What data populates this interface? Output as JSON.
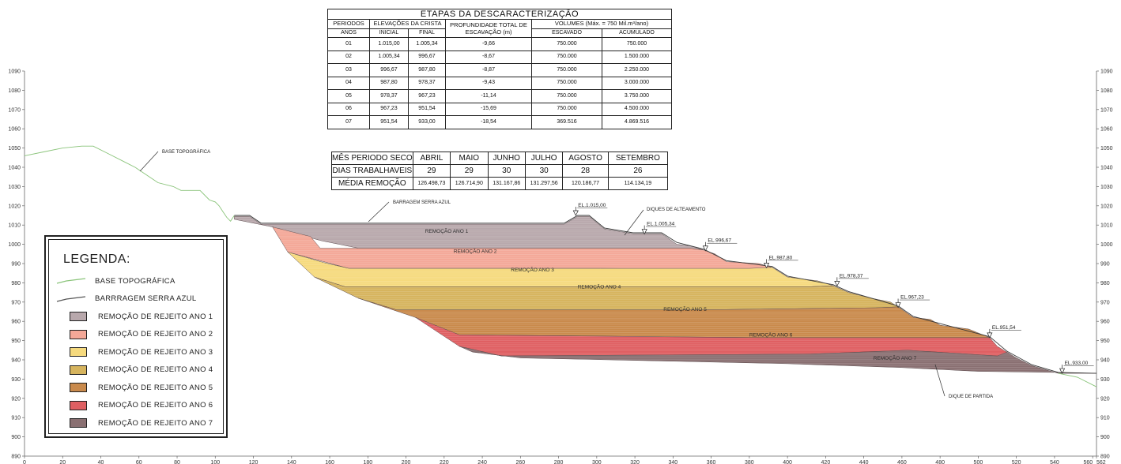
{
  "etapas_table": {
    "title": "ETAPAS DA DESCARACTERIZAÇÃO",
    "hdr_periodos": "PERIODOS",
    "hdr_elevacoes": "ELEVAÇÕES DA CRISTA",
    "hdr_profundidade": "PROFUNDIDADE TOTAL DE ESCAVAÇÃO (m)",
    "hdr_volumes": "VOLUMES (Máx. = 750 Mil.m³/ano)",
    "hdr_anos": "ANOS",
    "hdr_inicial": "INICIAL",
    "hdr_final": "FINAL",
    "hdr_escavado": "ESCAVADO",
    "hdr_acumulado": "ACUMULADO",
    "rows": [
      {
        "ano": "01",
        "inicial": "1.015,00",
        "final": "1.005,34",
        "prof": "-9,66",
        "escavado": "750.000",
        "acumulado": "750.000"
      },
      {
        "ano": "02",
        "inicial": "1.005,34",
        "final": "996,67",
        "prof": "-8,67",
        "escavado": "750.000",
        "acumulado": "1.500.000"
      },
      {
        "ano": "03",
        "inicial": "996,67",
        "final": "987,80",
        "prof": "-8,87",
        "escavado": "750.000",
        "acumulado": "2.250.000"
      },
      {
        "ano": "04",
        "inicial": "987,80",
        "final": "978,37",
        "prof": "-9,43",
        "escavado": "750.000",
        "acumulado": "3.000.000"
      },
      {
        "ano": "05",
        "inicial": "978,37",
        "final": "967,23",
        "prof": "-11,14",
        "escavado": "750.000",
        "acumulado": "3.750.000"
      },
      {
        "ano": "06",
        "inicial": "967,23",
        "final": "951,54",
        "prof": "-15,69",
        "escavado": "750.000",
        "acumulado": "4.500.000"
      },
      {
        "ano": "07",
        "inicial": "951,54",
        "final": "933,00",
        "prof": "-18,54",
        "escavado": "369.516",
        "acumulado": "4.869.516"
      }
    ]
  },
  "meses_table": {
    "label_mes": "MÊS PERIODO SECO",
    "label_dias": "DIAS TRABALHAVEIS",
    "label_media": "MÉDIA REMOÇÃO",
    "meses": [
      "ABRIL",
      "MAIO",
      "JUNHO",
      "JULHO",
      "AGOSTO",
      "SETEMBRO"
    ],
    "dias": [
      "29",
      "29",
      "30",
      "30",
      "28",
      "26"
    ],
    "media": [
      "126.498,73",
      "126.714,90",
      "131.167,86",
      "131.297,56",
      "120.186,77",
      "114.134,19"
    ]
  },
  "legend": {
    "title": "LEGENDA:",
    "items": [
      {
        "label": "BASE TOPOGRÁFICA",
        "kind": "line",
        "color": "#8ac47a"
      },
      {
        "label": "BARRRAGEM SERRA AZUL",
        "kind": "line",
        "color": "#555555"
      },
      {
        "label": "REMOÇÃO DE REJEITO ANO 1",
        "kind": "swatch",
        "color": "#b8a8ac"
      },
      {
        "label": "REMOÇÃO DE REJEITO ANO 2",
        "kind": "swatch",
        "color": "#f4a898"
      },
      {
        "label": "REMOÇÃO DE REJEITO ANO 3",
        "kind": "swatch",
        "color": "#f6da7e"
      },
      {
        "label": "REMOÇÃO DE REJEITO ANO 4",
        "kind": "swatch",
        "color": "#d6b45e"
      },
      {
        "label": "REMOÇÃO DE REJEITO ANO 5",
        "kind": "swatch",
        "color": "#c98a4c"
      },
      {
        "label": "REMOÇÃO DE REJEITO ANO 6",
        "kind": "swatch",
        "color": "#df5f62"
      },
      {
        "label": "REMOÇÃO DE REJEITO ANO 7",
        "kind": "swatch",
        "color": "#8a7072"
      }
    ]
  },
  "section": {
    "x_axis": {
      "min": 0,
      "max": 562,
      "ticks": [
        "0",
        "20",
        "40",
        "60",
        "80",
        "100",
        "120",
        "140",
        "160",
        "180",
        "200",
        "220",
        "240",
        "260",
        "280",
        "300",
        "320",
        "340",
        "360",
        "380",
        "400",
        "420",
        "440",
        "460",
        "480",
        "500",
        "520",
        "540",
        "560",
        "562"
      ]
    },
    "y_axis": {
      "min": 890,
      "max": 1090,
      "ticks": [
        "890",
        "900",
        "910",
        "920",
        "930",
        "940",
        "950",
        "960",
        "970",
        "980",
        "990",
        "1000",
        "1010",
        "1020",
        "1030",
        "1040",
        "1050",
        "1060",
        "1070",
        "1080",
        "1090"
      ]
    },
    "annotations": {
      "base_topografica": "BASE TOPOGRÁFICA",
      "barragem": "BARRAGEM SERRA AZUL",
      "diques_alteamento": "DIQUES DE ALTEAMENTO",
      "dique_partida": "DIQUE DE PARTIDA"
    },
    "elevation_marks": [
      {
        "label": "EL.1.015,00",
        "x": 289,
        "y": 1015
      },
      {
        "label": "EL.1.005,34",
        "x": 325,
        "y": 1005.34
      },
      {
        "label": "EL.996,67",
        "x": 357,
        "y": 996.67
      },
      {
        "label": "EL.987,80",
        "x": 389,
        "y": 987.8
      },
      {
        "label": "EL.978,37",
        "x": 426,
        "y": 978.37
      },
      {
        "label": "EL.967,23",
        "x": 458,
        "y": 967.23
      },
      {
        "label": "EL.951,54",
        "x": 506,
        "y": 951.54
      },
      {
        "label": "EL.933,00",
        "x": 544,
        "y": 933
      }
    ],
    "zones": [
      {
        "name": "REMOÇÃO ANO 1",
        "color": "#b8a8ac",
        "label_x": 210,
        "label_y": 1006
      },
      {
        "name": "REMOÇÃO ANO 2",
        "color": "#f4a898",
        "label_x": 225,
        "label_y": 995.5
      },
      {
        "name": "REMOÇÃO ANO 3",
        "color": "#f6da7e",
        "label_x": 255,
        "label_y": 986
      },
      {
        "name": "REMOÇÃO ANO 4",
        "color": "#d6b45e",
        "label_x": 290,
        "label_y": 977
      },
      {
        "name": "REMOÇÃO ANO 5",
        "color": "#c98a4c",
        "label_x": 335,
        "label_y": 965.5
      },
      {
        "name": "REMOÇÃO ANO 6",
        "color": "#df5f62",
        "label_x": 380,
        "label_y": 952
      },
      {
        "name": "REMOÇÃO ANO 7",
        "color": "#8a7072",
        "label_x": 445,
        "label_y": 940
      }
    ]
  }
}
